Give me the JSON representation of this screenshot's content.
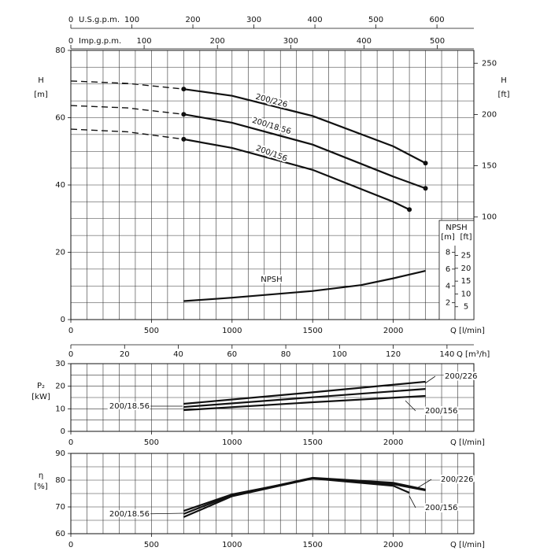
{
  "chart_data": [
    {
      "type": "line",
      "ylabel": "H",
      "yunit": "[m]",
      "y2label": "H",
      "y2unit": "[ft]",
      "xlabel": "Q [l/min]",
      "xlim": [
        0,
        2500
      ],
      "xticks": [
        0,
        500,
        1000,
        1500,
        2000
      ],
      "ylim": [
        0,
        80
      ],
      "yticks": [
        0,
        20,
        40,
        60,
        80
      ],
      "y2lim": [
        0,
        262.5
      ],
      "y2ticks": [
        100,
        150,
        200,
        250
      ],
      "grid": true,
      "minor_grid": {
        "x": 100,
        "y": 5
      },
      "markers": true,
      "top_axes": [
        {
          "label": "U.S.g.p.m.",
          "lim": [
            0,
            660.5
          ],
          "ticks": [
            0,
            100,
            200,
            300,
            400,
            500,
            600
          ]
        },
        {
          "label": "Imp.g.p.m.",
          "lim": [
            0,
            549.9
          ],
          "ticks": [
            0,
            100,
            200,
            300,
            400,
            500
          ]
        }
      ],
      "bottom_axis2": {
        "label": "Q [m³/h]",
        "lim": [
          0,
          150
        ],
        "ticks": [
          0,
          20,
          40,
          60,
          80,
          100,
          120,
          140
        ]
      },
      "npsh_axis": {
        "title": "NPSH",
        "unit_m": "[m]",
        "unit_ft": "[ft]",
        "lim_m": [
          0,
          32
        ],
        "ticks_m": [
          2,
          4,
          6,
          8
        ],
        "lim_ft": [
          0,
          105
        ],
        "ticks_ft": [
          5,
          10,
          15,
          20,
          25
        ]
      },
      "series": [
        {
          "name": "200/226",
          "color": "#111111",
          "x": [
            0,
            350,
            700,
            1000,
            1500,
            2000,
            2200
          ],
          "values": [
            70.9,
            70.2,
            68.5,
            66.5,
            60.5,
            51.5,
            46.5
          ],
          "line_styles": [
            "dashed",
            "dashed",
            "solid",
            "solid",
            "solid",
            "solid"
          ]
        },
        {
          "name": "200/18.56",
          "color": "#111111",
          "x": [
            0,
            350,
            700,
            1000,
            1500,
            2000,
            2200
          ],
          "values": [
            63.6,
            62.9,
            61,
            58.5,
            52,
            42.5,
            39
          ],
          "line_styles": [
            "dashed",
            "dashed",
            "solid",
            "solid",
            "solid",
            "solid"
          ]
        },
        {
          "name": "200/156",
          "color": "#111111",
          "x": [
            0,
            350,
            700,
            1000,
            1500,
            2000,
            2100
          ],
          "values": [
            56.6,
            55.8,
            53.6,
            51,
            44.5,
            35,
            32.7
          ],
          "line_styles": [
            "dashed",
            "dashed",
            "solid",
            "solid",
            "solid",
            "solid"
          ]
        },
        {
          "name": "NPSH",
          "color": "#111111",
          "axis": "npsh",
          "x": [
            700,
            1000,
            1500,
            1800,
            2000,
            2200
          ],
          "values": [
            2.2,
            2.6,
            3.4,
            4.1,
            4.9,
            5.8
          ],
          "line_styles": [
            "solid",
            "solid",
            "solid",
            "solid",
            "solid"
          ]
        }
      ]
    },
    {
      "type": "line",
      "ylabel": "P₂",
      "yunit": "[kW]",
      "xlabel": "Q [l/min]",
      "xlim": [
        0,
        2500
      ],
      "xticks": [
        0,
        500,
        1000,
        1500,
        2000
      ],
      "ylim": [
        0,
        30
      ],
      "yticks": [
        0,
        10,
        20,
        30
      ],
      "grid": true,
      "minor_grid": {
        "x": 100,
        "y": 5
      },
      "series": [
        {
          "name": "200/226",
          "color": "#111111",
          "x": [
            700,
            1500,
            2200
          ],
          "values": [
            12.2,
            17.3,
            22
          ],
          "line_styles": [
            "solid",
            "solid"
          ]
        },
        {
          "name": "200/18.56",
          "color": "#111111",
          "x": [
            700,
            1500,
            2200
          ],
          "values": [
            10.8,
            15.1,
            18.8
          ],
          "line_styles": [
            "solid",
            "solid"
          ]
        },
        {
          "name": "200/156",
          "color": "#111111",
          "x": [
            700,
            1500,
            2200
          ],
          "values": [
            9.4,
            12.9,
            15.7
          ],
          "line_styles": [
            "solid",
            "solid"
          ]
        }
      ]
    },
    {
      "type": "line",
      "ylabel": "η",
      "yunit": "[%]",
      "xlabel": "Q [l/min]",
      "xlim": [
        0,
        2500
      ],
      "xticks": [
        0,
        500,
        1000,
        1500,
        2000
      ],
      "ylim": [
        60,
        90
      ],
      "yticks": [
        60,
        70,
        80,
        90
      ],
      "grid": true,
      "minor_grid": {
        "x": 100,
        "y": 5
      },
      "series": [
        {
          "name": "200/226",
          "color": "#111111",
          "x": [
            700,
            1000,
            1500,
            2000,
            2200
          ],
          "values": [
            68.5,
            74.7,
            80.6,
            78.5,
            76.2
          ],
          "line_styles": [
            "solid",
            "solid",
            "solid",
            "solid"
          ]
        },
        {
          "name": "200/18.56",
          "color": "#111111",
          "x": [
            700,
            1000,
            1500,
            2000,
            2200
          ],
          "values": [
            67.4,
            74.4,
            80.9,
            79,
            76.5
          ],
          "line_styles": [
            "solid",
            "solid",
            "solid",
            "solid"
          ]
        },
        {
          "name": "200/156",
          "color": "#111111",
          "x": [
            700,
            1000,
            1500,
            2000,
            2100
          ],
          "values": [
            66.2,
            74,
            80.6,
            77.9,
            75.3
          ],
          "line_styles": [
            "solid",
            "solid",
            "solid",
            "solid"
          ]
        }
      ]
    }
  ]
}
